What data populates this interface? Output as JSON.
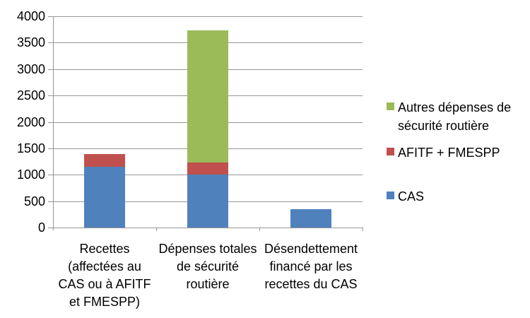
{
  "chart_data": {
    "type": "bar",
    "stacked": true,
    "categories": [
      "Recettes\n(affectées au\nCAS ou à AFITF\net FMESPP)",
      "Dépenses totales\nde sécurité\nroutière",
      "Désendettement\nfinancé par les\nrecettes du CAS"
    ],
    "series": [
      {
        "name": "CAS",
        "color": "#4F81BD",
        "values": [
          1150,
          1000,
          350
        ]
      },
      {
        "name": "AFITF + FMESPP",
        "color": "#C0504D",
        "values": [
          240,
          230,
          0
        ]
      },
      {
        "name": "Autres dépenses de\nsécurité routière",
        "color": "#9BBB59",
        "values": [
          0,
          2500,
          0
        ]
      }
    ],
    "ylim": [
      0,
      4000
    ],
    "yticks": [
      0,
      500,
      1000,
      1500,
      2000,
      2500,
      3000,
      3500,
      4000
    ],
    "grid": true,
    "legend_position": "right",
    "title": "",
    "xlabel": "",
    "ylabel": ""
  },
  "colors": {
    "gridline": "#969696",
    "axis": "#969696",
    "text": "#000000",
    "background": "#FFFFFF"
  }
}
